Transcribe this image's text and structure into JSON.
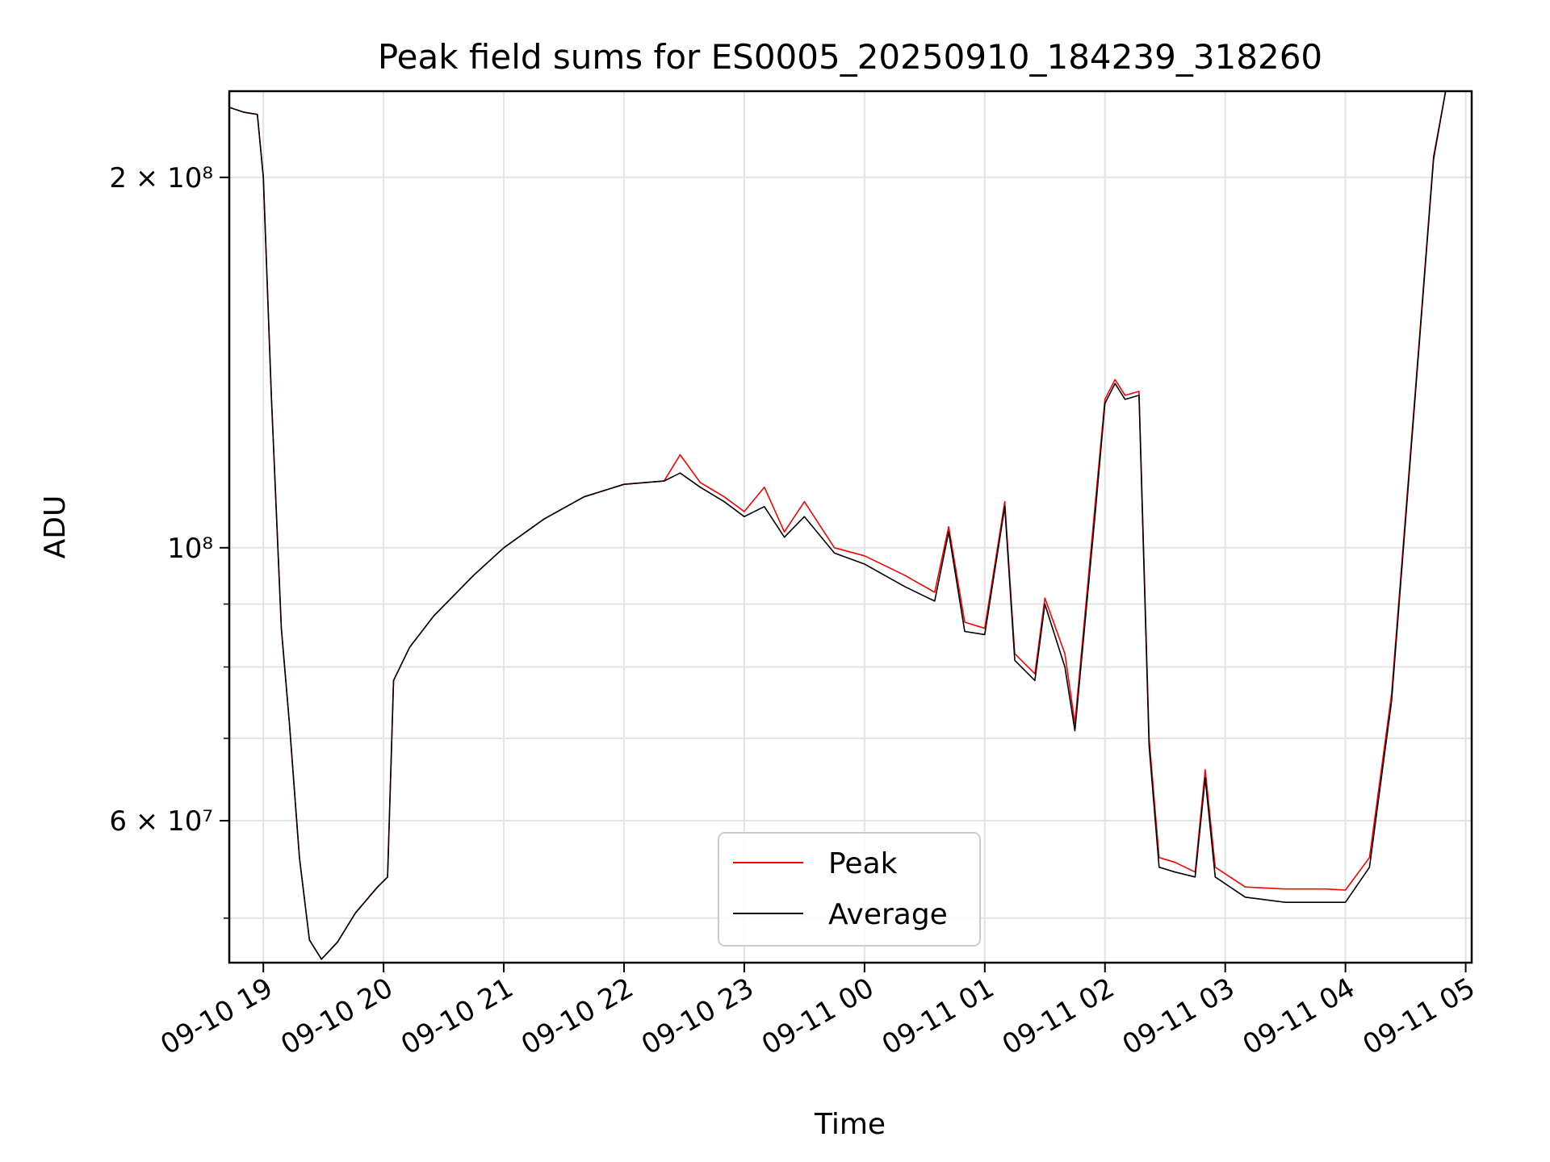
{
  "chart_data": {
    "type": "line",
    "title": "Peak field sums for ES0005_20250910_184239_318260",
    "xlabel": "Time",
    "ylabel": "ADU",
    "xlim": [
      "2025-09-10 18:43",
      "2025-09-11 05:03"
    ],
    "ylim": [
      46000000,
      235000000
    ],
    "yscale": "log",
    "grid": true,
    "legend_position": "lower center",
    "x_ticks": [
      "09-10 19",
      "09-10 20",
      "09-10 21",
      "09-10 22",
      "09-10 23",
      "09-11 00",
      "09-11 01",
      "09-11 02",
      "09-11 03",
      "09-11 04",
      "09-11 05"
    ],
    "y_ticks": [
      {
        "value": 200000000,
        "label": "2 × 10⁸"
      },
      {
        "value": 100000000,
        "label": "10⁸"
      },
      {
        "value": 60000000,
        "label": "6 × 10⁷"
      }
    ],
    "series": [
      {
        "name": "Peak",
        "color": "#ff0000",
        "points": [
          [
            "2025-09-10 18:43",
            228000000
          ],
          [
            "2025-09-10 18:50",
            226000000
          ],
          [
            "2025-09-10 18:57",
            225000000
          ],
          [
            "2025-09-10 19:00",
            200000000
          ],
          [
            "2025-09-10 19:04",
            133000000
          ],
          [
            "2025-09-10 19:09",
            86000000
          ],
          [
            "2025-09-10 19:13",
            72000000
          ],
          [
            "2025-09-10 19:18",
            56000000
          ],
          [
            "2025-09-10 19:23",
            48000000
          ],
          [
            "2025-09-10 19:29",
            46300000
          ],
          [
            "2025-09-10 19:37",
            47800000
          ],
          [
            "2025-09-10 19:46",
            50500000
          ],
          [
            "2025-09-10 19:57",
            53000000
          ],
          [
            "2025-09-10 20:02",
            54000000
          ],
          [
            "2025-09-10 20:05",
            78000000
          ],
          [
            "2025-09-10 20:13",
            83000000
          ],
          [
            "2025-09-10 20:25",
            88000000
          ],
          [
            "2025-09-10 20:45",
            95000000
          ],
          [
            "2025-09-10 21:00",
            100000000
          ],
          [
            "2025-09-10 21:20",
            105500000
          ],
          [
            "2025-09-10 21:40",
            110000000
          ],
          [
            "2025-09-10 22:00",
            112600000
          ],
          [
            "2025-09-10 22:20",
            113300000
          ],
          [
            "2025-09-10 22:28",
            119000000
          ],
          [
            "2025-09-10 22:38",
            113000000
          ],
          [
            "2025-09-10 22:50",
            110000000
          ],
          [
            "2025-09-10 23:00",
            107000000
          ],
          [
            "2025-09-10 23:10",
            112000000
          ],
          [
            "2025-09-10 23:20",
            103000000
          ],
          [
            "2025-09-10 23:30",
            109000000
          ],
          [
            "2025-09-10 23:45",
            100000000
          ],
          [
            "2025-09-11 00:00",
            98500000
          ],
          [
            "2025-09-11 00:20",
            95000000
          ],
          [
            "2025-09-11 00:35",
            92000000
          ],
          [
            "2025-09-11 00:42",
            104000000
          ],
          [
            "2025-09-11 00:50",
            87000000
          ],
          [
            "2025-09-11 01:00",
            86000000
          ],
          [
            "2025-09-11 01:10",
            109000000
          ],
          [
            "2025-09-11 01:15",
            82000000
          ],
          [
            "2025-09-11 01:25",
            79000000
          ],
          [
            "2025-09-11 01:30",
            91000000
          ],
          [
            "2025-09-11 01:40",
            82000000
          ],
          [
            "2025-09-11 01:45",
            72000000
          ],
          [
            "2025-09-11 01:55",
            108000000
          ],
          [
            "2025-09-11 02:00",
            132000000
          ],
          [
            "2025-09-11 02:05",
            137000000
          ],
          [
            "2025-09-11 02:10",
            133000000
          ],
          [
            "2025-09-11 02:17",
            134000000
          ],
          [
            "2025-09-11 02:22",
            70000000
          ],
          [
            "2025-09-11 02:27",
            56000000
          ],
          [
            "2025-09-11 02:35",
            55500000
          ],
          [
            "2025-09-11 02:45",
            54500000
          ],
          [
            "2025-09-11 02:50",
            66000000
          ],
          [
            "2025-09-11 02:55",
            55000000
          ],
          [
            "2025-09-11 03:10",
            53000000
          ],
          [
            "2025-09-11 03:30",
            52800000
          ],
          [
            "2025-09-11 03:50",
            52800000
          ],
          [
            "2025-09-11 04:00",
            52700000
          ],
          [
            "2025-09-11 04:12",
            56000000
          ],
          [
            "2025-09-11 04:23",
            76000000
          ],
          [
            "2025-09-11 04:35",
            135000000
          ],
          [
            "2025-09-11 04:44",
            208000000
          ],
          [
            "2025-09-11 04:50",
            235000000
          ]
        ]
      },
      {
        "name": "Average",
        "color": "#000000",
        "points": [
          [
            "2025-09-10 18:43",
            228000000
          ],
          [
            "2025-09-10 18:50",
            226000000
          ],
          [
            "2025-09-10 18:57",
            225000000
          ],
          [
            "2025-09-10 19:00",
            200000000
          ],
          [
            "2025-09-10 19:04",
            133000000
          ],
          [
            "2025-09-10 19:09",
            86000000
          ],
          [
            "2025-09-10 19:13",
            72000000
          ],
          [
            "2025-09-10 19:18",
            56000000
          ],
          [
            "2025-09-10 19:23",
            48000000
          ],
          [
            "2025-09-10 19:29",
            46300000
          ],
          [
            "2025-09-10 19:37",
            47800000
          ],
          [
            "2025-09-10 19:46",
            50500000
          ],
          [
            "2025-09-10 19:57",
            53000000
          ],
          [
            "2025-09-10 20:02",
            54000000
          ],
          [
            "2025-09-10 20:05",
            78000000
          ],
          [
            "2025-09-10 20:13",
            83000000
          ],
          [
            "2025-09-10 20:25",
            88000000
          ],
          [
            "2025-09-10 20:45",
            95000000
          ],
          [
            "2025-09-10 21:00",
            100000000
          ],
          [
            "2025-09-10 21:20",
            105500000
          ],
          [
            "2025-09-10 21:40",
            110000000
          ],
          [
            "2025-09-10 22:00",
            112600000
          ],
          [
            "2025-09-10 22:20",
            113300000
          ],
          [
            "2025-09-10 22:28",
            115000000
          ],
          [
            "2025-09-10 22:38",
            112000000
          ],
          [
            "2025-09-10 22:50",
            109000000
          ],
          [
            "2025-09-10 23:00",
            106000000
          ],
          [
            "2025-09-10 23:10",
            108000000
          ],
          [
            "2025-09-10 23:20",
            102000000
          ],
          [
            "2025-09-10 23:30",
            106000000
          ],
          [
            "2025-09-10 23:45",
            99000000
          ],
          [
            "2025-09-11 00:00",
            97000000
          ],
          [
            "2025-09-11 00:20",
            93000000
          ],
          [
            "2025-09-11 00:35",
            90500000
          ],
          [
            "2025-09-11 00:42",
            103000000
          ],
          [
            "2025-09-11 00:50",
            85500000
          ],
          [
            "2025-09-11 01:00",
            85000000
          ],
          [
            "2025-09-11 01:10",
            108000000
          ],
          [
            "2025-09-11 01:15",
            81000000
          ],
          [
            "2025-09-11 01:25",
            78000000
          ],
          [
            "2025-09-11 01:30",
            90000000
          ],
          [
            "2025-09-11 01:40",
            80000000
          ],
          [
            "2025-09-11 01:45",
            71000000
          ],
          [
            "2025-09-11 01:55",
            106000000
          ],
          [
            "2025-09-11 02:00",
            131000000
          ],
          [
            "2025-09-11 02:05",
            136000000
          ],
          [
            "2025-09-11 02:10",
            132000000
          ],
          [
            "2025-09-11 02:17",
            133000000
          ],
          [
            "2025-09-11 02:22",
            69000000
          ],
          [
            "2025-09-11 02:27",
            55000000
          ],
          [
            "2025-09-11 02:35",
            54500000
          ],
          [
            "2025-09-11 02:45",
            54000000
          ],
          [
            "2025-09-11 02:50",
            65000000
          ],
          [
            "2025-09-11 02:55",
            54000000
          ],
          [
            "2025-09-11 03:10",
            52000000
          ],
          [
            "2025-09-11 03:30",
            51500000
          ],
          [
            "2025-09-11 03:50",
            51500000
          ],
          [
            "2025-09-11 04:00",
            51500000
          ],
          [
            "2025-09-11 04:12",
            55000000
          ],
          [
            "2025-09-11 04:23",
            75000000
          ],
          [
            "2025-09-11 04:35",
            134000000
          ],
          [
            "2025-09-11 04:44",
            207000000
          ],
          [
            "2025-09-11 04:50",
            235000000
          ]
        ]
      }
    ]
  }
}
